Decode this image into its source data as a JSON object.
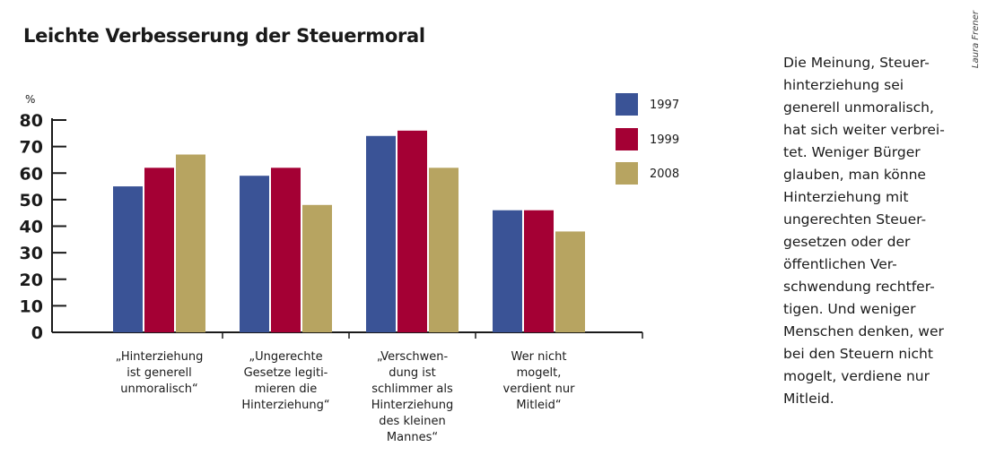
{
  "chart_data": {
    "type": "bar",
    "title": "Leichte Verbesserung der Steuermoral",
    "ylabel": "%",
    "ylim": [
      0,
      80
    ],
    "yticks": [
      0,
      10,
      20,
      30,
      40,
      50,
      60,
      70,
      80
    ],
    "grid": false,
    "legend_position": "right",
    "categories": [
      "„Hinterziehung\nist generell\nunmoralisch“",
      "„Ungerechte\nGesetze legiti-\nmieren die\nHinterziehung“",
      "„Verschwen-\ndung ist\nschlimmer als\nHinterziehung\ndes kleinen\nMannes“",
      "Wer nicht\nmogelt,\nverdient nur\nMitleid“"
    ],
    "series": [
      {
        "name": "1997",
        "color": "#3a5396",
        "values": [
          55,
          59,
          74,
          46
        ]
      },
      {
        "name": "1999",
        "color": "#a40034",
        "values": [
          62,
          62,
          76,
          46
        ]
      },
      {
        "name": "2008",
        "color": "#b7a461",
        "values": [
          67,
          48,
          62,
          38
        ]
      }
    ]
  },
  "side_text": "Die Meinung, Steuer-\nhinterziehung sei\ngenerell unmoralisch,\nhat sich weiter verbrei-\ntet. Weniger Bürger\nglauben, man könne\nHinterziehung mit\nungerechten Steuer-\ngesetzen oder der\nöffentlichen Ver-\nschwendung rechtfer-\ntigen. Und weniger\nMenschen denken, wer\nbei den Steuern nicht\nmogelt, verdiene nur\nMitleid.",
  "credit": "Laura Frener"
}
